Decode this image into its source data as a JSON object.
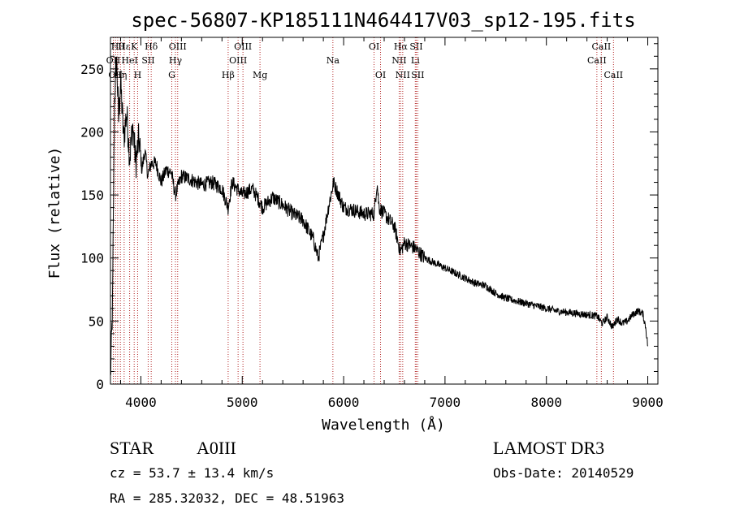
{
  "chart_data": {
    "type": "line",
    "title": "spec-56807-KP185111N464417V03_sp12-195.fits",
    "xlabel": "Wavelength (Å)",
    "ylabel": "Flux (relative)",
    "xlim": [
      3700,
      9100
    ],
    "ylim": [
      0,
      275
    ],
    "x_ticks": [
      4000,
      5000,
      6000,
      7000,
      8000,
      9000
    ],
    "y_ticks": [
      0,
      50,
      100,
      150,
      200,
      250
    ],
    "x_tick_labels": [
      "4000",
      "5000",
      "6000",
      "7000",
      "8000",
      "9000"
    ],
    "y_tick_labels": [
      "0",
      "50",
      "100",
      "150",
      "200",
      "250"
    ],
    "grid": false,
    "series": [
      {
        "name": "flux",
        "x": [
          3700,
          3720,
          3740,
          3760,
          3780,
          3800,
          3830,
          3860,
          3890,
          3920,
          3950,
          3980,
          4010,
          4040,
          4070,
          4100,
          4150,
          4200,
          4250,
          4300,
          4340,
          4400,
          4500,
          4600,
          4700,
          4800,
          4860,
          4900,
          5000,
          5100,
          5170,
          5200,
          5300,
          5400,
          5500,
          5600,
          5700,
          5750,
          5800,
          5850,
          5900,
          5950,
          6000,
          6100,
          6200,
          6300,
          6330,
          6350,
          6400,
          6500,
          6560,
          6600,
          6700,
          6800,
          6900,
          7000,
          7100,
          7200,
          7300,
          7400,
          7500,
          7600,
          7700,
          7800,
          7900,
          8000,
          8100,
          8200,
          8300,
          8400,
          8500,
          8550,
          8600,
          8650,
          8700,
          8750,
          8800,
          8850,
          8900,
          8950,
          8980,
          9000
        ],
        "values": [
          5,
          60,
          225,
          260,
          210,
          240,
          195,
          215,
          180,
          205,
          175,
          195,
          170,
          185,
          165,
          175,
          175,
          160,
          170,
          168,
          150,
          165,
          162,
          158,
          160,
          155,
          140,
          160,
          150,
          155,
          145,
          140,
          148,
          142,
          135,
          130,
          115,
          100,
          118,
          140,
          160,
          150,
          140,
          138,
          135,
          135,
          160,
          140,
          135,
          125,
          105,
          112,
          108,
          100,
          96,
          92,
          88,
          84,
          80,
          78,
          72,
          68,
          66,
          64,
          62,
          60,
          58,
          57,
          56,
          55,
          54,
          48,
          53,
          45,
          52,
          48,
          50,
          55,
          58,
          56,
          45,
          30
        ]
      }
    ],
    "lines": [
      {
        "wavelength": 3728,
        "label": "OII",
        "row": 2
      },
      {
        "wavelength": 3750,
        "label": "OII",
        "row": 3
      },
      {
        "wavelength": 3771,
        "label": "Hθ",
        "row": 1
      },
      {
        "wavelength": 3798,
        "label": "Hη",
        "row": 3
      },
      {
        "wavelength": 3835,
        "label": "Hε",
        "row": 1
      },
      {
        "wavelength": 3889,
        "label": "HeI",
        "row": 2
      },
      {
        "wavelength": 3934,
        "label": "K",
        "row": 1
      },
      {
        "wavelength": 3968,
        "label": "H",
        "row": 3
      },
      {
        "wavelength": 4072,
        "label": "SII",
        "row": 2
      },
      {
        "wavelength": 4102,
        "label": "Hδ",
        "row": 1
      },
      {
        "wavelength": 4305,
        "label": "G",
        "row": 3
      },
      {
        "wavelength": 4341,
        "label": "Hγ",
        "row": 2
      },
      {
        "wavelength": 4363,
        "label": "OIII",
        "row": 1
      },
      {
        "wavelength": 4861,
        "label": "Hβ",
        "row": 3
      },
      {
        "wavelength": 4959,
        "label": "OIII",
        "row": 2
      },
      {
        "wavelength": 5007,
        "label": "OIII",
        "row": 1
      },
      {
        "wavelength": 5175,
        "label": "Mg",
        "row": 3
      },
      {
        "wavelength": 5894,
        "label": "Na",
        "row": 2
      },
      {
        "wavelength": 6300,
        "label": "OI",
        "row": 1
      },
      {
        "wavelength": 6364,
        "label": "OI",
        "row": 3
      },
      {
        "wavelength": 6548,
        "label": "NII",
        "row": 2
      },
      {
        "wavelength": 6563,
        "label": "Hα",
        "row": 1
      },
      {
        "wavelength": 6583,
        "label": "NII",
        "row": 3
      },
      {
        "wavelength": 6707,
        "label": "Li",
        "row": 2
      },
      {
        "wavelength": 6716,
        "label": "SII",
        "row": 1
      },
      {
        "wavelength": 6731,
        "label": "SII",
        "row": 3
      },
      {
        "wavelength": 8498,
        "label": "CaII",
        "row": 2
      },
      {
        "wavelength": 8542,
        "label": "CaII",
        "row": 1
      },
      {
        "wavelength": 8662,
        "label": "CaII",
        "row": 3
      }
    ]
  },
  "info": {
    "object_class": "STAR",
    "subclass": "A0III",
    "cz": "cz = 53.7 ± 13.4 km/s",
    "coords": "RA = 285.32032, DEC =  48.51963",
    "survey": "LAMOST DR3",
    "obs_date": "Obs-Date: 20140529"
  }
}
